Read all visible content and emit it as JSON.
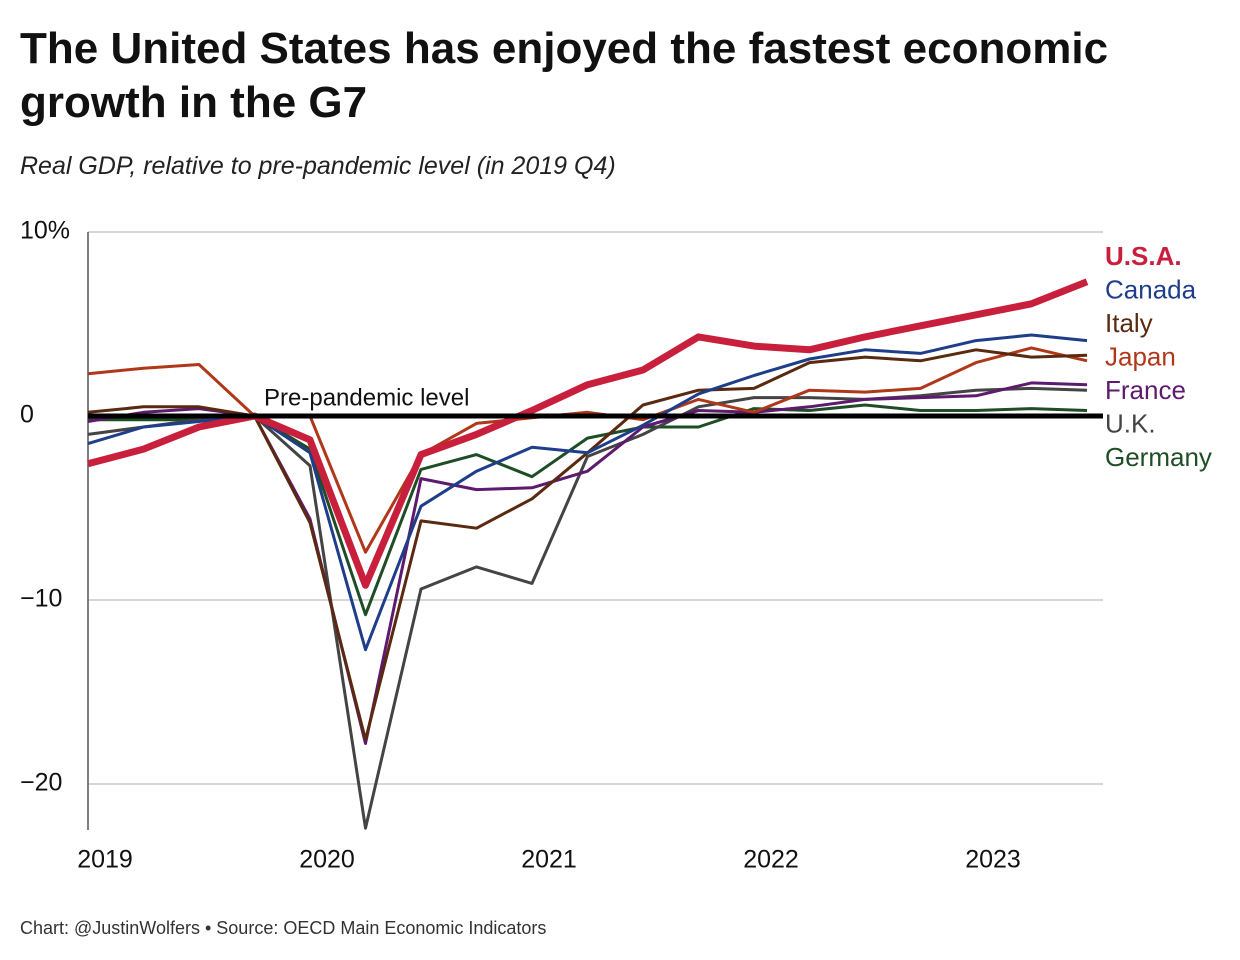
{
  "chart_data": {
    "type": "line",
    "title": "The United States has enjoyed the fastest economic growth in the G7",
    "subtitle": "Real GDP, relative to pre-pandemic level (in 2019 Q4)",
    "annotation": "Pre-pandemic level",
    "source": "Chart: @JustinWolfers • Source: OECD Main Economic Indicators",
    "x": [
      2019,
      2019.25,
      2019.5,
      2019.75,
      2020,
      2020.25,
      2020.5,
      2020.75,
      2021,
      2021.25,
      2021.5,
      2021.75,
      2022,
      2022.25,
      2022.5,
      2022.75,
      2023,
      2023.25,
      2023.5
    ],
    "xlim": [
      2019,
      2023.5
    ],
    "xticks": [
      2019,
      2020,
      2021,
      2022,
      2023
    ],
    "ylim": [
      -22.5,
      10
    ],
    "yticks": [
      {
        "value": 10,
        "label": "10%"
      },
      0,
      {
        "value": -10,
        "label": "−10"
      },
      {
        "value": -20,
        "label": "−20"
      }
    ],
    "grid": true,
    "series": [
      {
        "name": "U.S.A.",
        "color": "#c8203c",
        "values": [
          -2.6,
          -1.8,
          -0.6,
          0,
          -1.3,
          -9.2,
          -2.1,
          -1.0,
          0.3,
          1.7,
          2.5,
          4.3,
          3.8,
          3.6,
          4.3,
          4.9,
          5.5,
          6.1,
          7.3
        ]
      },
      {
        "name": "Canada",
        "color": "#1f3e8a",
        "values": [
          -1.5,
          -0.6,
          -0.3,
          0,
          -2.0,
          -12.7,
          -4.9,
          -3.0,
          -1.7,
          -2.0,
          -0.5,
          1.2,
          2.2,
          3.1,
          3.6,
          3.4,
          4.1,
          4.4,
          4.1
        ]
      },
      {
        "name": "Italy",
        "color": "#5a2a10",
        "values": [
          0.2,
          0.5,
          0.5,
          0,
          -5.8,
          -17.6,
          -5.7,
          -6.1,
          -4.5,
          -2.0,
          0.6,
          1.4,
          1.5,
          2.9,
          3.2,
          3.0,
          3.6,
          3.2,
          3.3
        ]
      },
      {
        "name": "Japan",
        "color": "#b0381a",
        "values": [
          2.3,
          2.6,
          2.8,
          0,
          0.0,
          -7.4,
          -2.1,
          -0.4,
          -0.1,
          0.2,
          -0.2,
          0.9,
          0.2,
          1.4,
          1.3,
          1.5,
          2.9,
          3.7,
          3.0
        ]
      },
      {
        "name": "France",
        "color": "#5e1a6e",
        "values": [
          -0.3,
          0.2,
          0.4,
          0,
          -5.6,
          -17.8,
          -3.4,
          -4.0,
          -3.9,
          -3.0,
          -0.6,
          0.3,
          0.2,
          0.5,
          0.9,
          1.0,
          1.1,
          1.8,
          1.7
        ]
      },
      {
        "name": "U.K.",
        "color": "#444444",
        "values": [
          -1.0,
          -0.6,
          -0.2,
          0,
          -2.7,
          -22.4,
          -9.4,
          -8.2,
          -9.1,
          -2.2,
          -1.0,
          0.5,
          1.0,
          1.0,
          0.9,
          1.1,
          1.4,
          1.5,
          1.4
        ]
      },
      {
        "name": "Germany",
        "color": "#1f4d26",
        "values": [
          -0.2,
          -0.2,
          -0.2,
          0,
          -1.8,
          -10.8,
          -2.9,
          -2.1,
          -3.3,
          -1.2,
          -0.6,
          -0.6,
          0.4,
          0.3,
          0.6,
          0.3,
          0.3,
          0.4,
          0.3
        ]
      }
    ]
  }
}
